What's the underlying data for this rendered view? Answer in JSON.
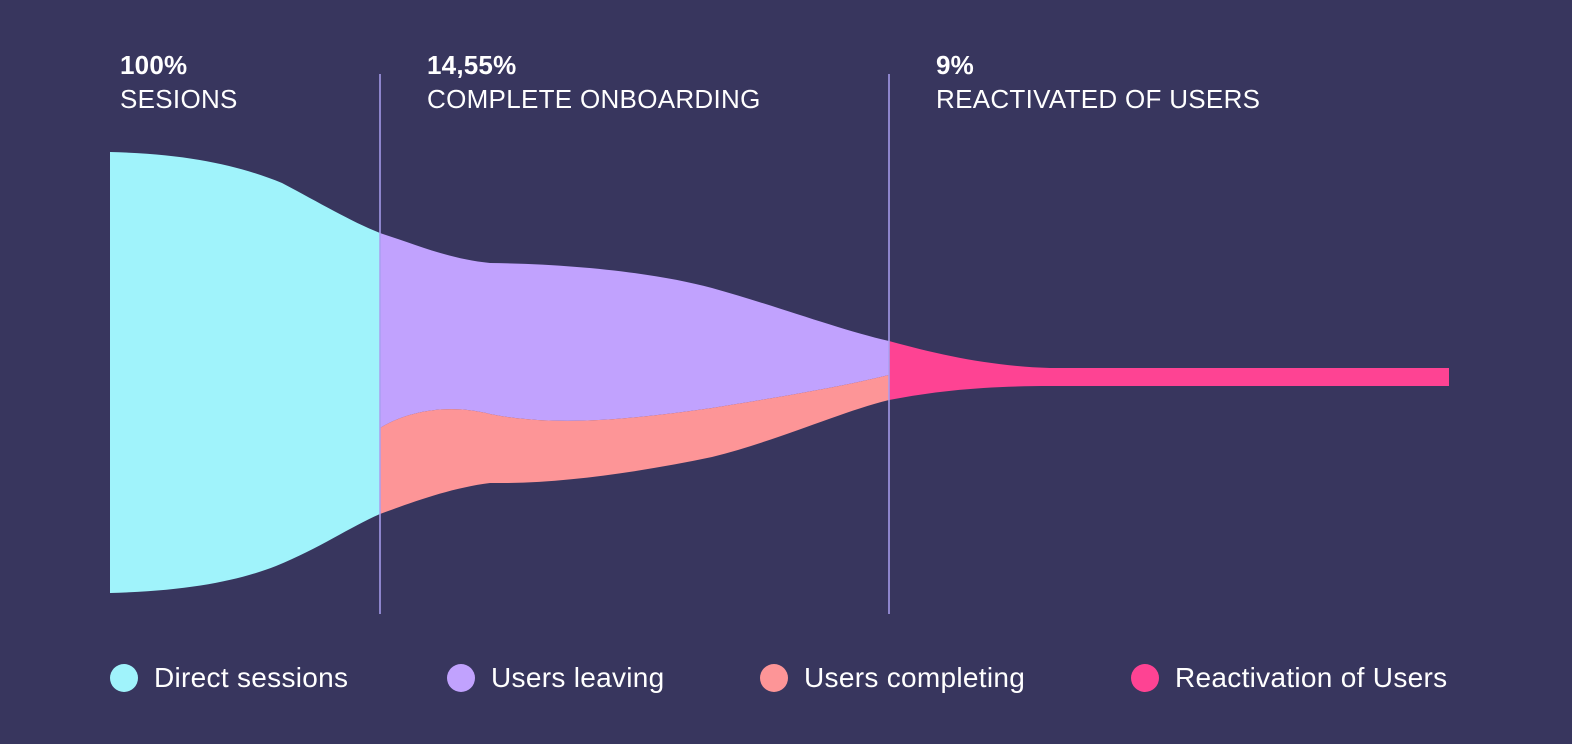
{
  "chart_data": {
    "type": "area",
    "title": "",
    "stages": [
      {
        "value": "100%",
        "label": "SESIONS"
      },
      {
        "value": "14,55%",
        "label": "COMPLETE ONBOARDING"
      },
      {
        "value": "9%",
        "label": "REACTIVATED OF USERS"
      }
    ],
    "series": [
      {
        "name": "Direct sessions",
        "color": "#a0f3fb"
      },
      {
        "name": "Users leaving",
        "color": "#c1a2fe"
      },
      {
        "name": "Users completing",
        "color": "#fd9597"
      },
      {
        "name": "Reactivation of Users",
        "color": "#fe4393"
      }
    ],
    "legend_position": "bottom",
    "grid": false
  },
  "colors": {
    "background": "#38365e",
    "divider": "#a99ff0",
    "text": "#ffffff"
  }
}
